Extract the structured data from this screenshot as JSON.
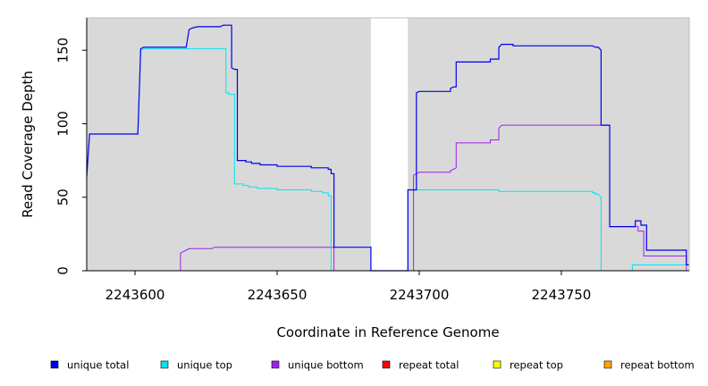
{
  "chart_data": {
    "type": "line",
    "xlabel": "Coordinate in Reference Genome",
    "ylabel": "Read Coverage Depth",
    "xlim": [
      2243583,
      2243795
    ],
    "ylim": [
      0,
      172
    ],
    "x_ticks": [
      2243600,
      2243650,
      2243700,
      2243750
    ],
    "x_tick_labels": [
      "2243600",
      "2243650",
      "2243700",
      "2243750"
    ],
    "y_ticks": [
      0,
      50,
      100,
      150
    ],
    "y_tick_labels": [
      "0",
      "50",
      "100",
      "150"
    ],
    "grid": false,
    "background_color": "#d9d9d9",
    "gap_region": [
      2243683,
      2243696
    ],
    "gap_color": "#ffffff",
    "legend_position": "bottom",
    "series": [
      {
        "name": "unique total",
        "color": "#0000ee",
        "points": [
          [
            2243583,
            64
          ],
          [
            2243584,
            93
          ],
          [
            2243601,
            93
          ],
          [
            2243602,
            151
          ],
          [
            2243603,
            152
          ],
          [
            2243618,
            152
          ],
          [
            2243619,
            164
          ],
          [
            2243620,
            165
          ],
          [
            2243622,
            166
          ],
          [
            2243630,
            166
          ],
          [
            2243631,
            167
          ],
          [
            2243634,
            167
          ],
          [
            2243634,
            138
          ],
          [
            2243635,
            137
          ],
          [
            2243636,
            137
          ],
          [
            2243636,
            75
          ],
          [
            2243639,
            75
          ],
          [
            2243639,
            74
          ],
          [
            2243641,
            74
          ],
          [
            2243641,
            73
          ],
          [
            2243644,
            73
          ],
          [
            2243644,
            72
          ],
          [
            2243650,
            72
          ],
          [
            2243650,
            71
          ],
          [
            2243662,
            71
          ],
          [
            2243662,
            70
          ],
          [
            2243668,
            70
          ],
          [
            2243668,
            69
          ],
          [
            2243669,
            69
          ],
          [
            2243669,
            66
          ],
          [
            2243670,
            66
          ],
          [
            2243670,
            16
          ],
          [
            2243683,
            16
          ],
          [
            2243683,
            0
          ],
          [
            2243696,
            0
          ],
          [
            2243696,
            55
          ],
          [
            2243699,
            55
          ],
          [
            2243699,
            121
          ],
          [
            2243700,
            122
          ],
          [
            2243711,
            122
          ],
          [
            2243711,
            124
          ],
          [
            2243712,
            125
          ],
          [
            2243713,
            125
          ],
          [
            2243713,
            142
          ],
          [
            2243725,
            142
          ],
          [
            2243725,
            144
          ],
          [
            2243728,
            144
          ],
          [
            2243728,
            152
          ],
          [
            2243729,
            154
          ],
          [
            2243733,
            154
          ],
          [
            2243733,
            153
          ],
          [
            2243761,
            153
          ],
          [
            2243762,
            152
          ],
          [
            2243763,
            152
          ],
          [
            2243764,
            150
          ],
          [
            2243764,
            99
          ],
          [
            2243767,
            99
          ],
          [
            2243767,
            30
          ],
          [
            2243776,
            30
          ],
          [
            2243776,
            34
          ],
          [
            2243778,
            34
          ],
          [
            2243778,
            31
          ],
          [
            2243780,
            31
          ],
          [
            2243780,
            14
          ],
          [
            2243794,
            14
          ],
          [
            2243794,
            4
          ],
          [
            2243795,
            4
          ]
        ]
      },
      {
        "name": "unique top",
        "color": "#00e5ee",
        "points": [
          [
            2243583,
            64
          ],
          [
            2243584,
            93
          ],
          [
            2243601,
            93
          ],
          [
            2243602,
            150
          ],
          [
            2243603,
            151
          ],
          [
            2243618,
            151
          ],
          [
            2243618,
            151
          ],
          [
            2243632,
            151
          ],
          [
            2243632,
            121
          ],
          [
            2243633,
            121
          ],
          [
            2243633,
            120
          ],
          [
            2243635,
            120
          ],
          [
            2243635,
            59
          ],
          [
            2243638,
            59
          ],
          [
            2243638,
            58
          ],
          [
            2243640,
            58
          ],
          [
            2243640,
            57
          ],
          [
            2243643,
            57
          ],
          [
            2243643,
            56
          ],
          [
            2243650,
            56
          ],
          [
            2243650,
            55
          ],
          [
            2243662,
            55
          ],
          [
            2243662,
            54
          ],
          [
            2243666,
            54
          ],
          [
            2243666,
            53
          ],
          [
            2243668,
            53
          ],
          [
            2243668,
            51
          ],
          [
            2243669,
            51
          ],
          [
            2243669,
            0
          ],
          [
            2243683,
            0
          ],
          [
            2243696,
            0
          ],
          [
            2243696,
            55
          ],
          [
            2243728,
            55
          ],
          [
            2243728,
            54
          ],
          [
            2243761,
            54
          ],
          [
            2243761,
            53
          ],
          [
            2243762,
            53
          ],
          [
            2243762,
            52
          ],
          [
            2243763,
            52
          ],
          [
            2243764,
            50
          ],
          [
            2243764,
            0
          ],
          [
            2243775,
            0
          ],
          [
            2243775,
            4
          ],
          [
            2243795,
            4
          ]
        ]
      },
      {
        "name": "unique bottom",
        "color": "#a020f0",
        "points": [
          [
            2243583,
            0
          ],
          [
            2243616,
            0
          ],
          [
            2243616,
            12
          ],
          [
            2243617,
            13
          ],
          [
            2243618,
            14
          ],
          [
            2243619,
            15
          ],
          [
            2243627,
            15
          ],
          [
            2243628,
            16
          ],
          [
            2243670,
            16
          ],
          [
            2243670,
            0
          ],
          [
            2243683,
            0
          ],
          [
            2243696,
            0
          ],
          [
            2243698,
            0
          ],
          [
            2243698,
            65
          ],
          [
            2243699,
            66
          ],
          [
            2243700,
            67
          ],
          [
            2243711,
            67
          ],
          [
            2243711,
            68
          ],
          [
            2243712,
            69
          ],
          [
            2243713,
            70
          ],
          [
            2243713,
            87
          ],
          [
            2243725,
            87
          ],
          [
            2243725,
            89
          ],
          [
            2243728,
            89
          ],
          [
            2243728,
            97
          ],
          [
            2243729,
            99
          ],
          [
            2243764,
            99
          ],
          [
            2243764,
            99
          ],
          [
            2243767,
            99
          ],
          [
            2243767,
            30
          ],
          [
            2243776,
            30
          ],
          [
            2243777,
            30
          ],
          [
            2243777,
            27
          ],
          [
            2243779,
            27
          ],
          [
            2243779,
            10
          ],
          [
            2243794,
            10
          ],
          [
            2243794,
            0
          ],
          [
            2243795,
            0
          ]
        ]
      },
      {
        "name": "repeat total",
        "color": "#ff0000",
        "points": [
          [
            2243583,
            0
          ],
          [
            2243795,
            0
          ]
        ]
      },
      {
        "name": "repeat top",
        "color": "#ffff00",
        "points": [
          [
            2243583,
            0
          ],
          [
            2243795,
            0
          ]
        ]
      },
      {
        "name": "repeat bottom",
        "color": "#ffa500",
        "points": [
          [
            2243583,
            0
          ],
          [
            2243795,
            0
          ]
        ]
      }
    ]
  }
}
